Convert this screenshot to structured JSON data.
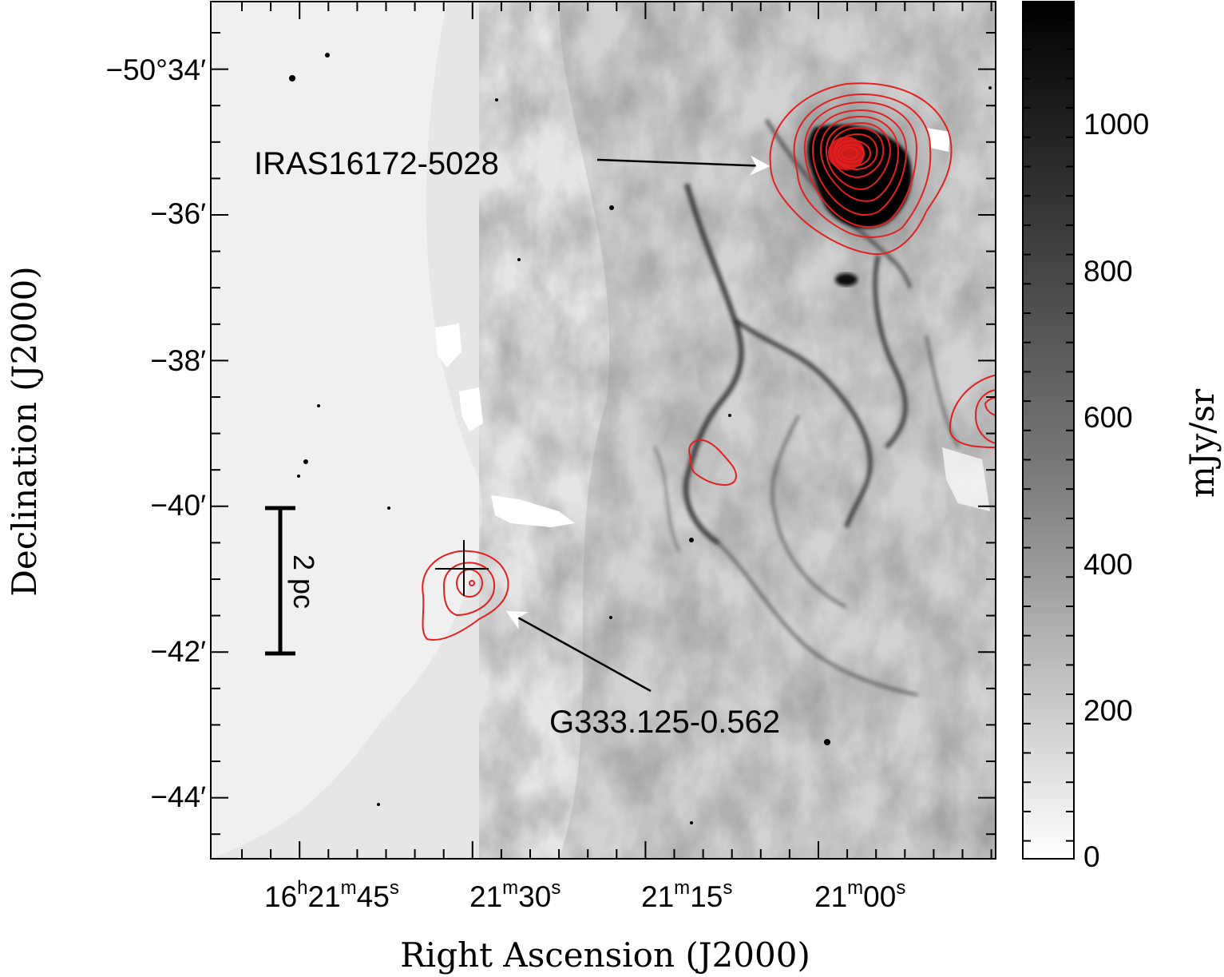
{
  "figure": {
    "x_axis_title": "Right Ascension (J2000)",
    "y_axis_title": "Declination (J2000)",
    "colorbar_unit": "mJy/sr",
    "colors": {
      "contour": "#e31f1f",
      "background": "#ffffff",
      "frame": "#000000"
    }
  },
  "ra_ticks": [
    {
      "h": "16",
      "hs": "h",
      "m": "21",
      "ms": "m",
      "s": "45",
      "ss": "s"
    },
    {
      "h": "",
      "hs": "",
      "m": "21",
      "ms": "m",
      "s": "30",
      "ss": "s"
    },
    {
      "h": "",
      "hs": "",
      "m": "21",
      "ms": "m",
      "s": "15",
      "ss": "s"
    },
    {
      "h": "",
      "hs": "",
      "m": "21",
      "ms": "m",
      "s": "00",
      "ss": "s"
    }
  ],
  "dec_ticks": [
    "−50°34′",
    "−36′",
    "−38′",
    "−40′",
    "−42′",
    "−44′"
  ],
  "colorbar": {
    "ticks": [
      "1000",
      "800",
      "600",
      "400",
      "200",
      "0"
    ],
    "range": [
      0,
      1100
    ],
    "colormap": "gray-inverted"
  },
  "annotations": {
    "iras": "IRAS16172-5028",
    "g333": "G333.125-0.562",
    "scalebar": "2 pc"
  }
}
